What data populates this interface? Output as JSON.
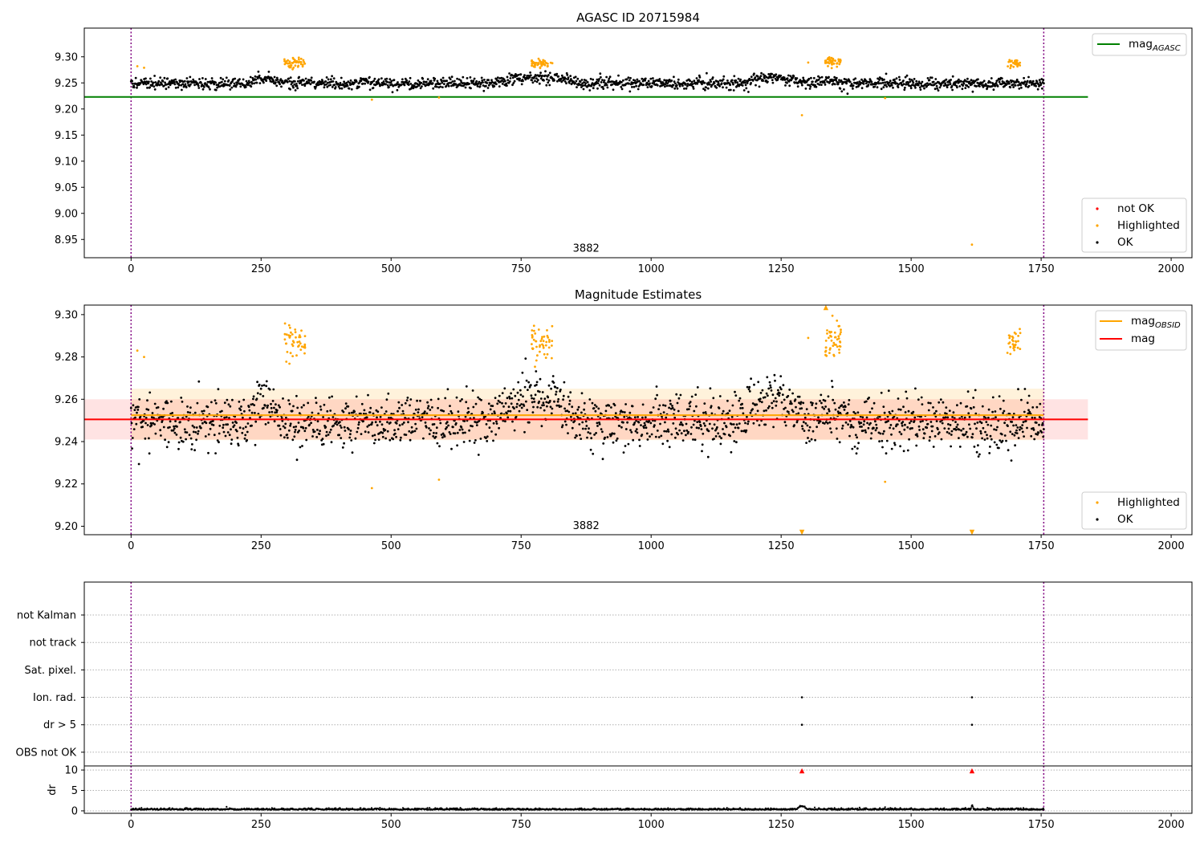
{
  "chart_data": [
    {
      "type": "scatter",
      "title": "AGASC ID 20715984",
      "xlim": [
        -90,
        2040
      ],
      "ylim": [
        8.915,
        9.355
      ],
      "xticks": [
        0,
        250,
        500,
        750,
        1000,
        1250,
        1500,
        1750,
        2000
      ],
      "yticks": [
        8.95,
        9.0,
        9.05,
        9.1,
        9.15,
        9.2,
        9.25,
        9.3
      ],
      "ytick_labels": [
        "8.95",
        "9.00",
        "9.05",
        "9.10",
        "9.15",
        "9.20",
        "9.25",
        "9.30"
      ],
      "vlines": [
        0,
        1755
      ],
      "vline_color": "#800080",
      "hline": {
        "name": "mag_AGASC",
        "y": 9.223,
        "x_range": [
          -90,
          1840
        ],
        "color": "#008000"
      },
      "annotation": {
        "text": "3882",
        "x": 875,
        "y": 8.925
      },
      "legend_lines": [
        {
          "label": "mag",
          "subscript": "AGASC",
          "color": "#008000"
        }
      ],
      "legend_points": [
        {
          "label": "not OK",
          "color": "#ff0000"
        },
        {
          "label": "Highlighted",
          "color": "#ffa500"
        },
        {
          "label": "OK",
          "color": "#000000"
        }
      ],
      "ok": {
        "x_range": [
          0,
          1755
        ],
        "n": 1750,
        "baseline": 9.249,
        "scatter": 0.0055,
        "bumps": [
          [
            220,
            290,
            0.01
          ],
          [
            690,
            870,
            0.012
          ],
          [
            1170,
            1300,
            0.011
          ],
          [
            1300,
            1390,
            0.004
          ]
        ]
      },
      "highlighted_clusters": [
        {
          "x": [
            295,
            335
          ],
          "y_center": 9.289,
          "spread": 0.008,
          "n": 45
        },
        {
          "x": [
            770,
            810
          ],
          "y_center": 9.287,
          "spread": 0.006,
          "n": 45
        },
        {
          "x": [
            1335,
            1365
          ],
          "y_center": 9.291,
          "spread": 0.008,
          "n": 45
        },
        {
          "x": [
            1685,
            1710
          ],
          "y_center": 9.287,
          "spread": 0.007,
          "n": 30
        }
      ],
      "highlighted_points": [
        {
          "x": 12,
          "y": 9.282
        },
        {
          "x": 25,
          "y": 9.279
        },
        {
          "x": 463,
          "y": 9.218
        },
        {
          "x": 592,
          "y": 9.222
        },
        {
          "x": 1290,
          "y": 9.188
        },
        {
          "x": 1302,
          "y": 9.289
        },
        {
          "x": 1450,
          "y": 9.221
        },
        {
          "x": 1617,
          "y": 8.94
        }
      ]
    },
    {
      "type": "scatter",
      "title": "Magnitude Estimates",
      "xlim": [
        -90,
        2040
      ],
      "ylim": [
        9.196,
        9.3045
      ],
      "xticks": [
        0,
        250,
        500,
        750,
        1000,
        1250,
        1500,
        1750,
        2000
      ],
      "yticks": [
        9.2,
        9.22,
        9.24,
        9.26,
        9.28,
        9.3
      ],
      "ytick_labels": [
        "9.20",
        "9.22",
        "9.24",
        "9.26",
        "9.28",
        "9.30"
      ],
      "vlines": [
        0,
        1755
      ],
      "vline_color": "#800080",
      "bands": [
        {
          "y": [
            9.2407,
            9.265
          ],
          "x_range": [
            0,
            1755
          ],
          "color": "#ffa500",
          "opacity": 0.14
        },
        {
          "y": [
            9.241,
            9.26
          ],
          "x_range": [
            -90,
            1840
          ],
          "color": "#ff0000",
          "opacity": 0.11
        }
      ],
      "hlines": [
        {
          "name": "mag_OBSID",
          "y": 9.2525,
          "x_range": [
            0,
            1755
          ],
          "color": "#ffa500"
        },
        {
          "name": "mag",
          "y": 9.2505,
          "x_range": [
            -90,
            1840
          ],
          "color": "#ff0000"
        }
      ],
      "annotation": {
        "text": "3882",
        "x": 875,
        "y": 9.199
      },
      "legend_lines": [
        {
          "label": "mag",
          "subscript": "OBSID",
          "color": "#ffa500"
        },
        {
          "label": "mag",
          "subscript": "",
          "color": "#ff0000"
        }
      ],
      "legend_points": [
        {
          "label": "Highlighted",
          "color": "#ffa500"
        },
        {
          "label": "OK",
          "color": "#000000"
        }
      ],
      "ok": {
        "x_range": [
          0,
          1755
        ],
        "n": 1750,
        "baseline": 9.249,
        "scatter": 0.0062,
        "bumps": [
          [
            220,
            290,
            0.01
          ],
          [
            690,
            870,
            0.012
          ],
          [
            1170,
            1300,
            0.011
          ],
          [
            1300,
            1390,
            0.004
          ]
        ]
      },
      "highlighted_clusters": [
        {
          "x": [
            295,
            335
          ],
          "y_center": 9.287,
          "spread": 0.008,
          "n": 45
        },
        {
          "x": [
            770,
            810
          ],
          "y_center": 9.286,
          "spread": 0.006,
          "n": 45
        },
        {
          "x": [
            1335,
            1365
          ],
          "y_center": 9.289,
          "spread": 0.008,
          "n": 45
        },
        {
          "x": [
            1685,
            1710
          ],
          "y_center": 9.287,
          "spread": 0.007,
          "n": 30
        }
      ],
      "highlighted_points": [
        {
          "x": 12,
          "y": 9.283
        },
        {
          "x": 25,
          "y": 9.28
        },
        {
          "x": 463,
          "y": 9.218
        },
        {
          "x": 592,
          "y": 9.222
        },
        {
          "x": 1302,
          "y": 9.289
        },
        {
          "x": 1450,
          "y": 9.221
        }
      ],
      "offscale_markers": [
        {
          "x": 1290,
          "direction": "down",
          "color": "#ffa500"
        },
        {
          "x": 1617,
          "direction": "down",
          "color": "#ffa500"
        },
        {
          "x": 1336,
          "direction": "up",
          "color": "#ffa500"
        }
      ]
    },
    {
      "type": "scatter",
      "title": "",
      "xlim": [
        -90,
        2040
      ],
      "ylim": [
        -0.5,
        6.2
      ],
      "categories": [
        "OBS not OK",
        "dr > 5",
        "Ion. rad.",
        "Sat. pixel.",
        "not track",
        "not Kalman"
      ],
      "vlines": [
        0,
        1755
      ],
      "vline_color": "#800080",
      "points": [
        {
          "x": 1290,
          "category": "Ion. rad."
        },
        {
          "x": 1617,
          "category": "Ion. rad."
        },
        {
          "x": 1290,
          "category": "dr > 5"
        },
        {
          "x": 1617,
          "category": "dr > 5"
        }
      ]
    },
    {
      "type": "scatter",
      "title": "",
      "ylabel": "dr",
      "xlim": [
        -90,
        2040
      ],
      "ylim": [
        -0.6,
        11
      ],
      "xticks": [
        0,
        250,
        500,
        750,
        1000,
        1250,
        1500,
        1750,
        2000
      ],
      "yticks": [
        0,
        5,
        10
      ],
      "vlines": [
        0,
        1755
      ],
      "vline_color": "#800080",
      "gridline_y": [
        0,
        5,
        10
      ],
      "ok": {
        "x_range": [
          0,
          1755
        ],
        "n": 1750,
        "baseline": 0.25,
        "scatter": 0.18
      },
      "offscale_markers": [
        {
          "x": 1290,
          "y": 9.8,
          "direction": "up",
          "color": "#ff0000"
        },
        {
          "x": 1617,
          "y": 9.8,
          "direction": "up",
          "color": "#ff0000"
        }
      ],
      "bumps": [
        [
          1280,
          1300,
          0.8
        ],
        [
          1615,
          1620,
          1.0
        ]
      ]
    }
  ]
}
